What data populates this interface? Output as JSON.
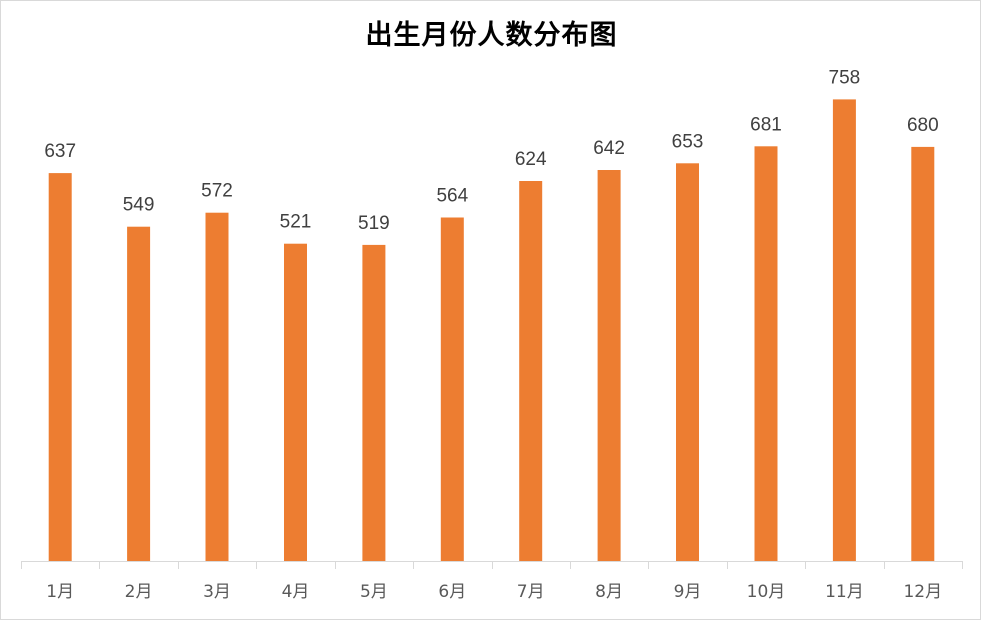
{
  "chart_data": {
    "type": "bar",
    "title": "出生月份人数分布图",
    "xlabel": "",
    "ylabel": "",
    "categories": [
      "1月",
      "2月",
      "3月",
      "4月",
      "5月",
      "6月",
      "7月",
      "8月",
      "9月",
      "10月",
      "11月",
      "12月"
    ],
    "series": [
      {
        "values": [
          637,
          549,
          572,
          521,
          519,
          564,
          624,
          642,
          653,
          681,
          758,
          680
        ]
      }
    ],
    "ylim": [
      0,
      800
    ],
    "grid": false,
    "data_labels": true,
    "legend": "none",
    "colors": {
      "bar": "#ED7D31",
      "axis": "#D9D9D9"
    }
  }
}
